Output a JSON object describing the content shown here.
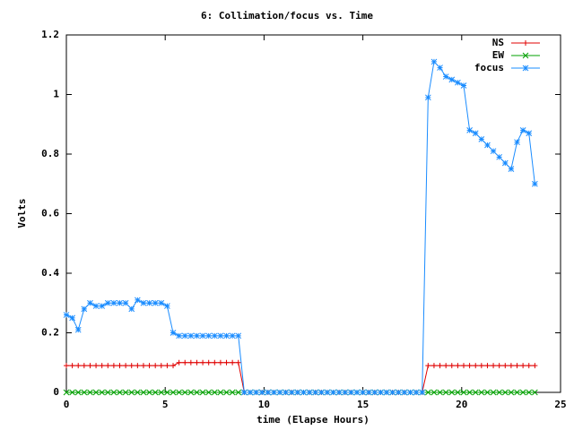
{
  "chart_data": {
    "type": "line",
    "title": "6: Collimation/focus vs. Time",
    "x_label": "time (Elapse Hours)",
    "y_label": "Volts",
    "x": [
      0,
      0.3,
      0.6,
      0.9,
      1.2,
      1.5,
      1.8,
      2.1,
      2.4,
      2.7,
      3,
      3.3,
      3.6,
      3.9,
      4.2,
      4.5,
      4.8,
      5.1,
      5.4,
      5.7,
      6,
      6.3,
      6.6,
      6.9,
      7.2,
      7.5,
      7.8,
      8.1,
      8.4,
      8.7,
      9,
      9.3,
      9.6,
      9.9,
      10.2,
      10.5,
      10.8,
      11.1,
      11.4,
      11.7,
      12,
      12.3,
      12.6,
      12.9,
      13.2,
      13.5,
      13.8,
      14.1,
      14.4,
      14.7,
      15,
      15.3,
      15.6,
      15.9,
      16.2,
      16.5,
      16.8,
      17.1,
      17.4,
      17.7,
      18,
      18.3,
      18.6,
      18.9,
      19.2,
      19.5,
      19.8,
      20.1,
      20.4,
      20.7,
      21,
      21.3,
      21.6,
      21.9,
      22.2,
      22.5,
      22.8,
      23.1,
      23.4,
      23.7
    ],
    "series": [
      {
        "name": "NS",
        "color": "#e00000",
        "marker": "plus",
        "values": [
          0.09,
          0.09,
          0.09,
          0.09,
          0.09,
          0.09,
          0.09,
          0.09,
          0.09,
          0.09,
          0.09,
          0.09,
          0.09,
          0.09,
          0.09,
          0.09,
          0.09,
          0.09,
          0.09,
          0.1,
          0.1,
          0.1,
          0.1,
          0.1,
          0.1,
          0.1,
          0.1,
          0.1,
          0.1,
          0.1,
          0,
          0,
          0,
          0,
          0,
          0,
          0,
          0,
          0,
          0,
          0,
          0,
          0,
          0,
          0,
          0,
          0,
          0,
          0,
          0,
          0,
          0,
          0,
          0,
          0,
          0,
          0,
          0,
          0,
          0,
          0,
          0.09,
          0.09,
          0.09,
          0.09,
          0.09,
          0.09,
          0.09,
          0.09,
          0.09,
          0.09,
          0.09,
          0.09,
          0.09,
          0.09,
          0.09,
          0.09,
          0.09,
          0.09,
          0.09
        ]
      },
      {
        "name": "EW",
        "color": "#00a000",
        "marker": "cross",
        "values": [
          0,
          0,
          0,
          0,
          0,
          0,
          0,
          0,
          0,
          0,
          0,
          0,
          0,
          0,
          0,
          0,
          0,
          0,
          0,
          0,
          0,
          0,
          0,
          0,
          0,
          0,
          0,
          0,
          0,
          0,
          0,
          0,
          0,
          0,
          0,
          0,
          0,
          0,
          0,
          0,
          0,
          0,
          0,
          0,
          0,
          0,
          0,
          0,
          0,
          0,
          0,
          0,
          0,
          0,
          0,
          0,
          0,
          0,
          0,
          0,
          0,
          0,
          0,
          0,
          0,
          0,
          0,
          0,
          0,
          0,
          0,
          0,
          0,
          0,
          0,
          0,
          0,
          0,
          0,
          0
        ]
      },
      {
        "name": "focus",
        "color": "#1a8cff",
        "marker": "star",
        "values": [
          0.26,
          0.25,
          0.21,
          0.28,
          0.3,
          0.29,
          0.29,
          0.3,
          0.3,
          0.3,
          0.3,
          0.28,
          0.31,
          0.3,
          0.3,
          0.3,
          0.3,
          0.29,
          0.2,
          0.19,
          0.19,
          0.19,
          0.19,
          0.19,
          0.19,
          0.19,
          0.19,
          0.19,
          0.19,
          0.19,
          0,
          0,
          0,
          0,
          0,
          0,
          0,
          0,
          0,
          0,
          0,
          0,
          0,
          0,
          0,
          0,
          0,
          0,
          0,
          0,
          0,
          0,
          0,
          0,
          0,
          0,
          0,
          0,
          0,
          0,
          0,
          0.99,
          1.11,
          1.09,
          1.06,
          1.05,
          1.04,
          1.03,
          0.88,
          0.87,
          0.85,
          0.83,
          0.81,
          0.79,
          0.77,
          0.75,
          0.84,
          0.88,
          0.87,
          0.7
        ]
      }
    ],
    "xlim": [
      0,
      25
    ],
    "xticks": [
      0,
      5,
      10,
      15,
      20,
      25
    ],
    "ylim": [
      0,
      1.2
    ],
    "yticks": [
      0,
      0.2,
      0.4,
      0.6,
      0.8,
      1,
      1.2
    ],
    "legend": "top-right"
  }
}
